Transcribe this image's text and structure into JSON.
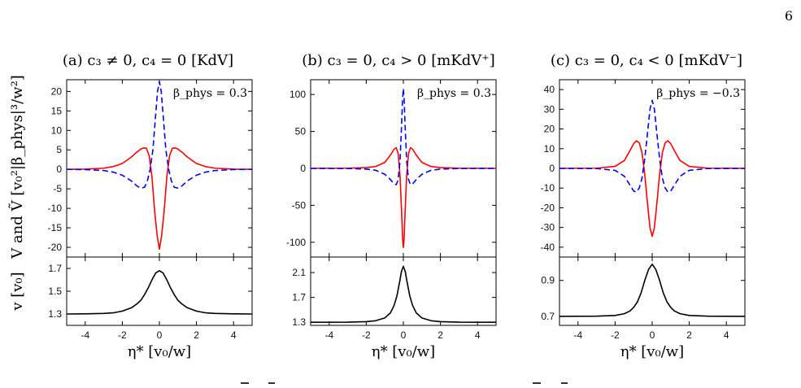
{
  "page_number": "6",
  "shared_labels": {
    "ylabel_top": "V and Ṽ [v₀²|β_phys|³/w²]",
    "ylabel_bottom": "v [v₀]",
    "xlabel": "η* [v₀/w]"
  },
  "chart_data": [
    {
      "type": "line",
      "panel": "a",
      "title": "(a) c₃ ≠ 0, c₄ = 0 [KdV]",
      "annotation": "β_phys = 0.3",
      "xlim": [
        -5,
        5
      ],
      "xticks": [
        -4,
        -2,
        0,
        2,
        4
      ],
      "top": {
        "ylim": [
          -22.5,
          23
        ],
        "yticks": [
          -20,
          -15,
          -10,
          -5,
          0,
          5,
          10,
          15,
          20
        ],
        "series": [
          {
            "color": "#ff0000",
            "style": "solid",
            "x": [
              -5,
              -4,
              -3,
              -2.5,
              -2,
              -1.5,
              -1.25,
              -1,
              -0.85,
              -0.7,
              -0.55,
              -0.4,
              -0.25,
              -0.12,
              0,
              0.12,
              0.25,
              0.4,
              0.55,
              0.7,
              0.85,
              1,
              1.25,
              1.5,
              2,
              2.5,
              3,
              4,
              5
            ],
            "y": [
              0,
              0.05,
              0.3,
              0.7,
              1.5,
              3.2,
              4.3,
              5.2,
              5.5,
              5.4,
              3.5,
              -2,
              -11,
              -17,
              -20.5,
              -17,
              -11,
              -2,
              3.5,
              5.4,
              5.5,
              5.2,
              4.3,
              3.2,
              1.5,
              0.7,
              0.3,
              0.05,
              0
            ]
          },
          {
            "color": "#0000ff",
            "style": "dashed",
            "x": [
              -5,
              -4,
              -3,
              -2.5,
              -2,
              -1.5,
              -1.2,
              -1,
              -0.8,
              -0.65,
              -0.5,
              -0.35,
              -0.2,
              -0.1,
              0,
              0.1,
              0.2,
              0.35,
              0.5,
              0.65,
              0.8,
              1,
              1.2,
              1.5,
              2,
              2.5,
              3,
              4,
              5
            ],
            "y": [
              0,
              -0.05,
              -0.3,
              -0.7,
              -1.5,
              -3,
              -4.3,
              -4.8,
              -4.6,
              -3,
              0,
              5,
              14,
              20,
              22.5,
              20,
              14,
              5,
              0,
              -3,
              -4.6,
              -4.8,
              -4.3,
              -3,
              -1.5,
              -0.7,
              -0.3,
              -0.05,
              0
            ]
          }
        ]
      },
      "bottom": {
        "ylim": [
          1.2,
          1.8
        ],
        "yticks": [
          1.3,
          1.5,
          1.7
        ],
        "series": [
          {
            "color": "#000000",
            "style": "solid",
            "x": [
              -5,
              -4,
              -3,
              -2.5,
              -2,
              -1.5,
              -1.2,
              -1,
              -0.8,
              -0.6,
              -0.4,
              -0.2,
              0,
              0.2,
              0.4,
              0.6,
              0.8,
              1,
              1.2,
              1.5,
              2,
              2.5,
              3,
              4,
              5
            ],
            "y": [
              1.3,
              1.301,
              1.305,
              1.31,
              1.325,
              1.355,
              1.39,
              1.42,
              1.47,
              1.53,
              1.6,
              1.66,
              1.68,
              1.66,
              1.6,
              1.53,
              1.47,
              1.42,
              1.39,
              1.355,
              1.325,
              1.31,
              1.305,
              1.301,
              1.3
            ]
          }
        ]
      }
    },
    {
      "type": "line",
      "panel": "b",
      "title": "(b) c₃ = 0, c₄ > 0 [mKdV⁺]",
      "annotation": "β_phys = 0.3",
      "xlim": [
        -5,
        5
      ],
      "xticks": [
        -4,
        -2,
        0,
        2,
        4
      ],
      "top": {
        "ylim": [
          -120,
          120
        ],
        "yticks": [
          -100,
          -50,
          0,
          50,
          100
        ],
        "series": [
          {
            "color": "#ff0000",
            "style": "solid",
            "x": [
              -5,
              -3,
              -2,
              -1.5,
              -1,
              -0.7,
              -0.5,
              -0.38,
              -0.28,
              -0.18,
              -0.1,
              -0.04,
              0,
              0.04,
              0.1,
              0.18,
              0.28,
              0.38,
              0.5,
              0.7,
              1,
              1.5,
              2,
              3,
              5
            ],
            "y": [
              0,
              0.2,
              1,
              2.5,
              8,
              18,
              26,
              28,
              20,
              -10,
              -55,
              -95,
              -107,
              -95,
              -55,
              -10,
              20,
              28,
              26,
              18,
              8,
              2.5,
              1,
              0.2,
              0
            ]
          },
          {
            "color": "#0000ff",
            "style": "dashed",
            "x": [
              -5,
              -3,
              -2,
              -1.5,
              -1,
              -0.7,
              -0.5,
              -0.38,
              -0.28,
              -0.18,
              -0.1,
              -0.04,
              0,
              0.04,
              0.1,
              0.18,
              0.28,
              0.38,
              0.5,
              0.7,
              1,
              1.5,
              2,
              3,
              5
            ],
            "y": [
              0,
              -0.2,
              -1,
              -2.5,
              -8,
              -15,
              -21,
              -22,
              -15,
              10,
              55,
              95,
              108,
              95,
              55,
              10,
              -15,
              -22,
              -21,
              -15,
              -8,
              -2.5,
              -1,
              -0.2,
              0
            ]
          }
        ]
      },
      "bottom": {
        "ylim": [
          1.25,
          2.35
        ],
        "yticks": [
          1.3,
          1.7,
          2.1
        ],
        "series": [
          {
            "color": "#000000",
            "style": "solid",
            "x": [
              -5,
              -3,
              -2,
              -1.5,
              -1,
              -0.7,
              -0.5,
              -0.35,
              -0.2,
              -0.1,
              0,
              0.1,
              0.2,
              0.35,
              0.5,
              0.7,
              1,
              1.5,
              2,
              3,
              5
            ],
            "y": [
              1.3,
              1.302,
              1.31,
              1.325,
              1.37,
              1.45,
              1.57,
              1.72,
              1.95,
              2.12,
              2.2,
              2.12,
              1.95,
              1.72,
              1.57,
              1.45,
              1.37,
              1.325,
              1.31,
              1.302,
              1.3
            ]
          }
        ]
      }
    },
    {
      "type": "line",
      "panel": "c",
      "title": "(c) c₃ = 0, c₄ < 0 [mKdV⁻]",
      "annotation": "β_phys = −0.3",
      "xlim": [
        -5,
        5
      ],
      "xticks": [
        -4,
        -2,
        0,
        2,
        4
      ],
      "top": {
        "ylim": [
          -45,
          45
        ],
        "yticks": [
          -40,
          -30,
          -20,
          -10,
          0,
          10,
          20,
          30,
          40
        ],
        "series": [
          {
            "color": "#ff0000",
            "style": "solid",
            "x": [
              -5,
              -3,
              -2,
              -1.5,
              -1.2,
              -1,
              -0.85,
              -0.7,
              -0.55,
              -0.4,
              -0.25,
              -0.12,
              0,
              0.12,
              0.25,
              0.4,
              0.55,
              0.7,
              0.85,
              1,
              1.2,
              1.5,
              2,
              3,
              5
            ],
            "y": [
              0,
              0.1,
              1,
              4,
              9,
              12.5,
              14,
              13,
              8,
              -3,
              -18,
              -30,
              -34.5,
              -30,
              -18,
              -3,
              8,
              13,
              14,
              12.5,
              9,
              4,
              1,
              0.1,
              0
            ]
          },
          {
            "color": "#0000ff",
            "style": "dashed",
            "x": [
              -5,
              -3,
              -2,
              -1.5,
              -1.2,
              -1,
              -0.85,
              -0.7,
              -0.55,
              -0.4,
              -0.25,
              -0.12,
              0,
              0.12,
              0.25,
              0.4,
              0.55,
              0.7,
              0.85,
              1,
              1.2,
              1.5,
              2,
              3,
              5
            ],
            "y": [
              0,
              -0.1,
              -1,
              -4,
              -8.5,
              -11.5,
              -12,
              -10,
              -5,
              5,
              18,
              30,
              34.5,
              30,
              18,
              5,
              -5,
              -10,
              -12,
              -11.5,
              -8.5,
              -4,
              -1,
              -0.1,
              0
            ]
          }
        ]
      },
      "bottom": {
        "ylim": [
          0.65,
          1.03
        ],
        "yticks": [
          0.7,
          0.9
        ],
        "series": [
          {
            "color": "#000000",
            "style": "solid",
            "x": [
              -5,
              -3,
              -2,
              -1.5,
              -1.2,
              -1,
              -0.8,
              -0.6,
              -0.4,
              -0.2,
              0,
              0.2,
              0.4,
              0.6,
              0.8,
              1,
              1.2,
              1.5,
              2,
              3,
              5
            ],
            "y": [
              0.7,
              0.701,
              0.705,
              0.715,
              0.73,
              0.75,
              0.78,
              0.83,
              0.9,
              0.96,
              0.99,
              0.96,
              0.9,
              0.83,
              0.78,
              0.75,
              0.73,
              0.715,
              0.705,
              0.701,
              0.7
            ]
          }
        ]
      }
    }
  ]
}
